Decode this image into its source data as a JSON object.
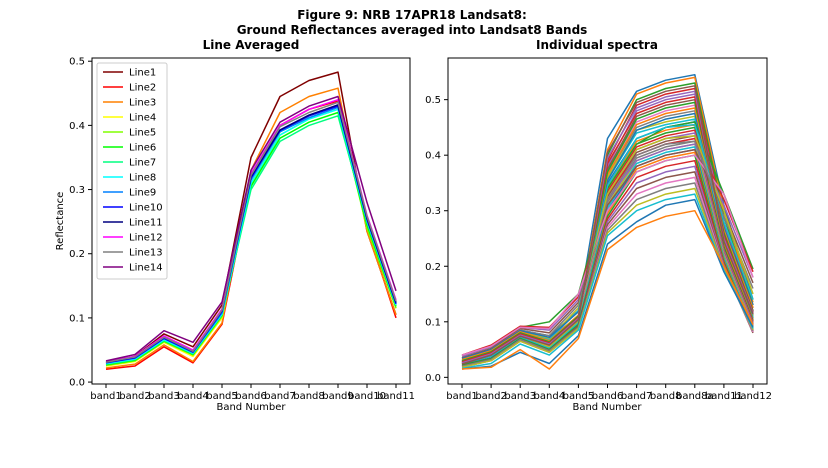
{
  "figure": {
    "title_line1": "Figure 9: NRB 17APR18  Landsat8:",
    "title_line2": "Ground Reflectances averaged into Landsat8 Bands"
  },
  "chart_data": [
    {
      "type": "line",
      "title": "Line Averaged",
      "xlabel": "Band Number",
      "ylabel": "Reflectance",
      "categories": [
        "band1",
        "band2",
        "band3",
        "band4",
        "band5",
        "band6",
        "band7",
        "band8",
        "band9",
        "band10",
        "band11"
      ],
      "ylim": [
        -0.003,
        0.505
      ],
      "yticks": [
        0.0,
        0.1,
        0.2,
        0.3,
        0.4,
        0.5
      ],
      "ytick_labels": [
        "0.0",
        "0.1",
        "0.2",
        "0.3",
        "0.4",
        "0.5"
      ],
      "grid": false,
      "legend": "top-left",
      "series": [
        {
          "name": "Line1",
          "color": "#800000",
          "values": [
            0.03,
            0.04,
            0.075,
            0.055,
            0.12,
            0.35,
            0.445,
            0.47,
            0.483,
            0.235,
            0.105
          ]
        },
        {
          "name": "Line2",
          "color": "#ff0000",
          "values": [
            0.02,
            0.025,
            0.055,
            0.03,
            0.09,
            0.315,
            0.4,
            0.425,
            0.438,
            0.24,
            0.1
          ]
        },
        {
          "name": "Line3",
          "color": "#ff8000",
          "values": [
            0.022,
            0.028,
            0.058,
            0.032,
            0.092,
            0.33,
            0.42,
            0.445,
            0.458,
            0.235,
            0.105
          ]
        },
        {
          "name": "Line4",
          "color": "#ffff00",
          "values": [
            0.025,
            0.032,
            0.062,
            0.04,
            0.1,
            0.31,
            0.39,
            0.415,
            0.43,
            0.245,
            0.115
          ]
        },
        {
          "name": "Line5",
          "color": "#80ff00",
          "values": [
            0.026,
            0.033,
            0.063,
            0.042,
            0.102,
            0.305,
            0.385,
            0.41,
            0.425,
            0.24,
            0.115
          ]
        },
        {
          "name": "Line6",
          "color": "#00ff00",
          "values": [
            0.027,
            0.034,
            0.064,
            0.043,
            0.104,
            0.305,
            0.38,
            0.405,
            0.42,
            0.245,
            0.118
          ]
        },
        {
          "name": "Line7",
          "color": "#00ff80",
          "values": [
            0.028,
            0.035,
            0.065,
            0.044,
            0.105,
            0.3,
            0.375,
            0.4,
            0.415,
            0.25,
            0.12
          ]
        },
        {
          "name": "Line8",
          "color": "#00ffff",
          "values": [
            0.029,
            0.036,
            0.066,
            0.045,
            0.106,
            0.31,
            0.385,
            0.41,
            0.425,
            0.25,
            0.12
          ]
        },
        {
          "name": "Line9",
          "color": "#0080ff",
          "values": [
            0.03,
            0.037,
            0.068,
            0.046,
            0.108,
            0.315,
            0.39,
            0.412,
            0.428,
            0.252,
            0.122
          ]
        },
        {
          "name": "Line10",
          "color": "#0000ff",
          "values": [
            0.03,
            0.038,
            0.068,
            0.047,
            0.11,
            0.318,
            0.392,
            0.415,
            0.43,
            0.255,
            0.122
          ]
        },
        {
          "name": "Line11",
          "color": "#000080",
          "values": [
            0.031,
            0.039,
            0.07,
            0.048,
            0.112,
            0.32,
            0.393,
            0.416,
            0.432,
            0.255,
            0.124
          ]
        },
        {
          "name": "Line12",
          "color": "#ff00ff",
          "values": [
            0.032,
            0.04,
            0.072,
            0.05,
            0.114,
            0.325,
            0.4,
            0.425,
            0.44,
            0.26,
            0.128
          ]
        },
        {
          "name": "Line13",
          "color": "#808080",
          "values": [
            0.031,
            0.039,
            0.07,
            0.048,
            0.112,
            0.322,
            0.398,
            0.42,
            0.436,
            0.258,
            0.126
          ]
        },
        {
          "name": "Line14",
          "color": "#800080",
          "values": [
            0.033,
            0.043,
            0.08,
            0.062,
            0.125,
            0.33,
            0.405,
            0.43,
            0.445,
            0.28,
            0.142
          ]
        }
      ]
    },
    {
      "type": "line",
      "title": "Individual spectra",
      "xlabel": "Band Number",
      "ylabel": "",
      "categories": [
        "band1",
        "band2",
        "band3",
        "band4",
        "band5",
        "band6",
        "band7",
        "band8",
        "band8a",
        "band11",
        "band12"
      ],
      "ylim": [
        -0.012,
        0.575
      ],
      "yticks": [
        0.0,
        0.1,
        0.2,
        0.3,
        0.4,
        0.5
      ],
      "ytick_labels": [
        "0.0",
        "0.1",
        "0.2",
        "0.3",
        "0.4",
        "0.5"
      ],
      "grid": false,
      "palette": [
        "#1f77b4",
        "#ff7f0e",
        "#2ca02c",
        "#d62728",
        "#9467bd",
        "#8c564b",
        "#e377c2",
        "#7f7f7f",
        "#bcbd22",
        "#17becf"
      ],
      "series": [
        {
          "values": [
            0.035,
            0.05,
            0.085,
            0.075,
            0.12,
            0.43,
            0.515,
            0.535,
            0.545,
            0.31,
            0.14
          ]
        },
        {
          "values": [
            0.03,
            0.045,
            0.08,
            0.06,
            0.11,
            0.41,
            0.51,
            0.53,
            0.54,
            0.3,
            0.135
          ]
        },
        {
          "values": [
            0.025,
            0.04,
            0.075,
            0.05,
            0.1,
            0.4,
            0.5,
            0.52,
            0.53,
            0.29,
            0.13
          ]
        },
        {
          "values": [
            0.03,
            0.045,
            0.08,
            0.06,
            0.105,
            0.39,
            0.49,
            0.51,
            0.52,
            0.28,
            0.125
          ]
        },
        {
          "values": [
            0.035,
            0.05,
            0.085,
            0.07,
            0.11,
            0.38,
            0.48,
            0.5,
            0.51,
            0.275,
            0.12
          ]
        },
        {
          "values": [
            0.03,
            0.045,
            0.08,
            0.06,
            0.105,
            0.375,
            0.47,
            0.49,
            0.5,
            0.27,
            0.118
          ]
        },
        {
          "values": [
            0.028,
            0.042,
            0.078,
            0.058,
            0.1,
            0.37,
            0.46,
            0.48,
            0.49,
            0.265,
            0.115
          ]
        },
        {
          "values": [
            0.025,
            0.04,
            0.075,
            0.055,
            0.098,
            0.365,
            0.45,
            0.47,
            0.48,
            0.26,
            0.112
          ]
        },
        {
          "values": [
            0.032,
            0.048,
            0.082,
            0.065,
            0.108,
            0.36,
            0.445,
            0.46,
            0.47,
            0.255,
            0.11
          ]
        },
        {
          "values": [
            0.03,
            0.045,
            0.08,
            0.062,
            0.105,
            0.355,
            0.44,
            0.455,
            0.465,
            0.25,
            0.108
          ]
        },
        {
          "values": [
            0.028,
            0.042,
            0.078,
            0.06,
            0.102,
            0.35,
            0.43,
            0.45,
            0.46,
            0.245,
            0.106
          ]
        },
        {
          "values": [
            0.025,
            0.04,
            0.075,
            0.055,
            0.1,
            0.345,
            0.425,
            0.445,
            0.455,
            0.24,
            0.104
          ]
        },
        {
          "values": [
            0.03,
            0.045,
            0.08,
            0.06,
            0.105,
            0.34,
            0.42,
            0.44,
            0.45,
            0.235,
            0.102
          ]
        },
        {
          "values": [
            0.028,
            0.042,
            0.078,
            0.058,
            0.102,
            0.335,
            0.415,
            0.435,
            0.445,
            0.23,
            0.1
          ]
        },
        {
          "values": [
            0.026,
            0.04,
            0.075,
            0.055,
            0.1,
            0.33,
            0.41,
            0.43,
            0.44,
            0.228,
            0.098
          ]
        },
        {
          "values": [
            0.024,
            0.038,
            0.072,
            0.052,
            0.098,
            0.325,
            0.405,
            0.425,
            0.435,
            0.225,
            0.096
          ]
        },
        {
          "values": [
            0.03,
            0.045,
            0.08,
            0.06,
            0.105,
            0.32,
            0.4,
            0.42,
            0.43,
            0.222,
            0.094
          ]
        },
        {
          "values": [
            0.028,
            0.042,
            0.078,
            0.058,
            0.102,
            0.315,
            0.395,
            0.415,
            0.425,
            0.22,
            0.092
          ]
        },
        {
          "values": [
            0.026,
            0.04,
            0.075,
            0.055,
            0.1,
            0.31,
            0.39,
            0.41,
            0.42,
            0.218,
            0.09
          ]
        },
        {
          "values": [
            0.024,
            0.038,
            0.072,
            0.052,
            0.098,
            0.305,
            0.385,
            0.405,
            0.415,
            0.215,
            0.088
          ]
        },
        {
          "values": [
            0.022,
            0.035,
            0.07,
            0.05,
            0.095,
            0.3,
            0.38,
            0.4,
            0.41,
            0.212,
            0.086
          ]
        },
        {
          "values": [
            0.02,
            0.032,
            0.068,
            0.048,
            0.092,
            0.295,
            0.375,
            0.395,
            0.405,
            0.21,
            0.084
          ]
        },
        {
          "values": [
            0.022,
            0.034,
            0.07,
            0.05,
            0.095,
            0.29,
            0.37,
            0.39,
            0.4,
            0.208,
            0.083
          ]
        },
        {
          "values": [
            0.02,
            0.032,
            0.068,
            0.048,
            0.092,
            0.285,
            0.36,
            0.38,
            0.39,
            0.205,
            0.082
          ]
        },
        {
          "values": [
            0.018,
            0.03,
            0.065,
            0.045,
            0.09,
            0.28,
            0.35,
            0.37,
            0.38,
            0.202,
            0.081
          ]
        },
        {
          "values": [
            0.02,
            0.032,
            0.068,
            0.048,
            0.092,
            0.275,
            0.34,
            0.36,
            0.37,
            0.2,
            0.08
          ]
        },
        {
          "values": [
            0.018,
            0.03,
            0.065,
            0.045,
            0.088,
            0.27,
            0.33,
            0.35,
            0.36,
            0.198,
            0.082
          ]
        },
        {
          "values": [
            0.02,
            0.032,
            0.068,
            0.048,
            0.09,
            0.265,
            0.32,
            0.34,
            0.35,
            0.196,
            0.084
          ]
        },
        {
          "values": [
            0.018,
            0.03,
            0.065,
            0.045,
            0.088,
            0.26,
            0.31,
            0.33,
            0.34,
            0.194,
            0.086
          ]
        },
        {
          "values": [
            0.016,
            0.025,
            0.06,
            0.04,
            0.085,
            0.255,
            0.3,
            0.32,
            0.33,
            0.192,
            0.088
          ]
        },
        {
          "values": [
            0.015,
            0.02,
            0.045,
            0.025,
            0.075,
            0.24,
            0.28,
            0.31,
            0.32,
            0.19,
            0.09
          ]
        },
        {
          "values": [
            0.015,
            0.018,
            0.05,
            0.015,
            0.07,
            0.23,
            0.27,
            0.29,
            0.3,
            0.2,
            0.095
          ]
        },
        {
          "values": [
            0.038,
            0.055,
            0.09,
            0.1,
            0.15,
            0.34,
            0.42,
            0.45,
            0.46,
            0.33,
            0.195
          ]
        },
        {
          "values": [
            0.04,
            0.058,
            0.092,
            0.09,
            0.145,
            0.33,
            0.4,
            0.42,
            0.43,
            0.32,
            0.19
          ]
        },
        {
          "values": [
            0.038,
            0.055,
            0.09,
            0.085,
            0.14,
            0.32,
            0.39,
            0.41,
            0.42,
            0.31,
            0.18
          ]
        },
        {
          "values": [
            0.035,
            0.052,
            0.088,
            0.08,
            0.135,
            0.31,
            0.38,
            0.4,
            0.41,
            0.3,
            0.17
          ]
        },
        {
          "values": [
            0.04,
            0.056,
            0.09,
            0.088,
            0.15,
            0.3,
            0.37,
            0.39,
            0.4,
            0.33,
            0.18
          ]
        },
        {
          "values": [
            0.032,
            0.05,
            0.085,
            0.075,
            0.13,
            0.32,
            0.4,
            0.42,
            0.425,
            0.29,
            0.16
          ]
        },
        {
          "values": [
            0.03,
            0.048,
            0.082,
            0.07,
            0.125,
            0.33,
            0.41,
            0.43,
            0.435,
            0.3,
            0.15
          ]
        },
        {
          "values": [
            0.028,
            0.045,
            0.08,
            0.068,
            0.12,
            0.345,
            0.43,
            0.45,
            0.455,
            0.28,
            0.14
          ]
        },
        {
          "values": [
            0.034,
            0.05,
            0.084,
            0.072,
            0.118,
            0.355,
            0.445,
            0.465,
            0.475,
            0.27,
            0.13
          ]
        },
        {
          "values": [
            0.032,
            0.048,
            0.082,
            0.066,
            0.112,
            0.365,
            0.455,
            0.475,
            0.485,
            0.265,
            0.125
          ]
        },
        {
          "values": [
            0.03,
            0.046,
            0.08,
            0.064,
            0.11,
            0.37,
            0.465,
            0.485,
            0.495,
            0.26,
            0.12
          ]
        },
        {
          "values": [
            0.028,
            0.044,
            0.078,
            0.062,
            0.108,
            0.385,
            0.475,
            0.495,
            0.505,
            0.255,
            0.118
          ]
        },
        {
          "values": [
            0.026,
            0.042,
            0.076,
            0.06,
            0.106,
            0.395,
            0.485,
            0.505,
            0.515,
            0.25,
            0.116
          ]
        },
        {
          "values": [
            0.024,
            0.04,
            0.074,
            0.058,
            0.104,
            0.405,
            0.495,
            0.515,
            0.525,
            0.245,
            0.114
          ]
        }
      ]
    }
  ]
}
